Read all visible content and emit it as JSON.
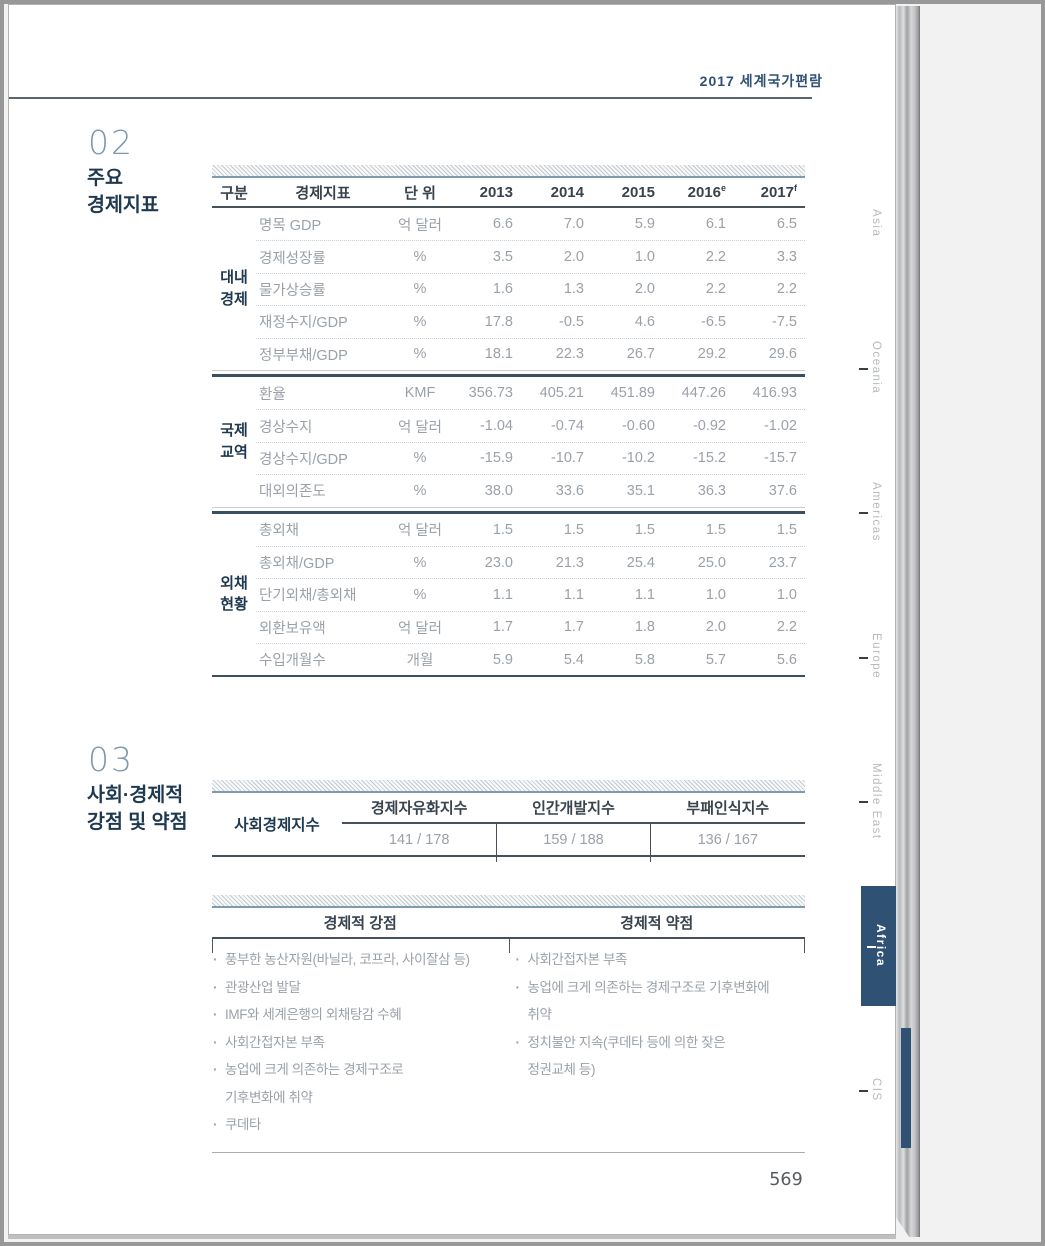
{
  "colors": {
    "accent_navy": "#2e5174",
    "rule_dark": "#46515b",
    "group_sep": "#3a5060",
    "band_line": "#7e9aad",
    "text_grey": "#9aa1a8",
    "title_navy": "#1f3950"
  },
  "doc": {
    "edition": "2017 세계국가편람",
    "page_number": "569"
  },
  "section02": {
    "number": "02",
    "title": "주요\n경제지표"
  },
  "econ_table": {
    "headers": {
      "group": "구분",
      "indicator": "경제지표",
      "unit": "단 위",
      "years": [
        {
          "label": "2013",
          "sup": ""
        },
        {
          "label": "2014",
          "sup": ""
        },
        {
          "label": "2015",
          "sup": ""
        },
        {
          "label": "2016",
          "sup": "e"
        },
        {
          "label": "2017",
          "sup": "f"
        }
      ]
    },
    "groups": [
      {
        "label": "대내\n경제",
        "rows": [
          {
            "indicator": "명목 GDP",
            "unit": "억 달러",
            "values": [
              "6.6",
              "7.0",
              "5.9",
              "6.1",
              "6.5"
            ]
          },
          {
            "indicator": "경제성장률",
            "unit": "%",
            "values": [
              "3.5",
              "2.0",
              "1.0",
              "2.2",
              "3.3"
            ]
          },
          {
            "indicator": "물가상승률",
            "unit": "%",
            "values": [
              "1.6",
              "1.3",
              "2.0",
              "2.2",
              "2.2"
            ]
          },
          {
            "indicator": "재정수지/GDP",
            "unit": "%",
            "values": [
              "17.8",
              "-0.5",
              "4.6",
              "-6.5",
              "-7.5"
            ]
          },
          {
            "indicator": "정부부채/GDP",
            "unit": "%",
            "values": [
              "18.1",
              "22.3",
              "26.7",
              "29.2",
              "29.6"
            ]
          }
        ]
      },
      {
        "label": "국제\n교역",
        "rows": [
          {
            "indicator": "환율",
            "unit": "KMF",
            "values": [
              "356.73",
              "405.21",
              "451.89",
              "447.26",
              "416.93"
            ]
          },
          {
            "indicator": "경상수지",
            "unit": "억 달러",
            "values": [
              "-1.04",
              "-0.74",
              "-0.60",
              "-0.92",
              "-1.02"
            ]
          },
          {
            "indicator": "경상수지/GDP",
            "unit": "%",
            "values": [
              "-15.9",
              "-10.7",
              "-10.2",
              "-15.2",
              "-15.7"
            ]
          },
          {
            "indicator": "대외의존도",
            "unit": "%",
            "values": [
              "38.0",
              "33.6",
              "35.1",
              "36.3",
              "37.6"
            ]
          }
        ]
      },
      {
        "label": "외채\n현황",
        "rows": [
          {
            "indicator": "총외채",
            "unit": "억 달러",
            "values": [
              "1.5",
              "1.5",
              "1.5",
              "1.5",
              "1.5"
            ]
          },
          {
            "indicator": "총외채/GDP",
            "unit": "%",
            "values": [
              "23.0",
              "21.3",
              "25.4",
              "25.0",
              "23.7"
            ]
          },
          {
            "indicator": "단기외채/총외채",
            "unit": "%",
            "values": [
              "1.1",
              "1.1",
              "1.1",
              "1.0",
              "1.0"
            ]
          },
          {
            "indicator": "외환보유액",
            "unit": "억 달러",
            "values": [
              "1.7",
              "1.7",
              "1.8",
              "2.0",
              "2.2"
            ]
          },
          {
            "indicator": "수입개월수",
            "unit": "개월",
            "values": [
              "5.9",
              "5.4",
              "5.8",
              "5.7",
              "5.6"
            ]
          }
        ]
      }
    ]
  },
  "section03": {
    "number": "03",
    "title": "사회·경제적\n강점 및 약점"
  },
  "indices_table": {
    "row_label": "사회경제지수",
    "columns": [
      {
        "name": "경제자유화지수",
        "value": "141 / 178"
      },
      {
        "name": "인간개발지수",
        "value": "159 / 188"
      },
      {
        "name": "부패인식지수",
        "value": "136 / 167"
      }
    ]
  },
  "sw_table": {
    "strengths_header": "경제적 강점",
    "weaknesses_header": "경제적 약점",
    "strengths": [
      [
        "풍부한 농산자원(바닐라, 코프라, 사이잘삼 등)"
      ],
      [
        "관광산업 발달"
      ],
      [
        "IMF와 세계은행의 외채탕감 수혜"
      ],
      [
        "사회간접자본 부족"
      ],
      [
        "농업에 크게 의존하는 경제구조로",
        "기후변화에 취약"
      ],
      [
        "쿠데타"
      ]
    ],
    "weaknesses": [
      [
        "사회간접자본 부족"
      ],
      [
        "농업에 크게 의존하는 경제구조로 기후변화에",
        "취약"
      ],
      [
        "정치불안 지속(쿠데타 등에 의한 잦은",
        "정권교체 등)"
      ]
    ]
  },
  "sidebar": {
    "tabs": [
      {
        "label": "Asia",
        "active": false,
        "tick": false
      },
      {
        "label": "Oceania",
        "active": false,
        "tick": true
      },
      {
        "label": "Americas",
        "active": false,
        "tick": true
      },
      {
        "label": "Europe",
        "active": false,
        "tick": true
      },
      {
        "label": "Middle East",
        "active": false,
        "tick": true
      },
      {
        "label": "Africa",
        "active": true,
        "tick": true
      },
      {
        "label": "CIS",
        "active": false,
        "tick": true
      }
    ]
  }
}
